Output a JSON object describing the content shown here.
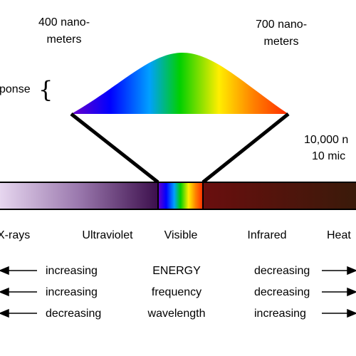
{
  "labels": {
    "nm400_line1": "400 nano-",
    "nm400_line2": "meters",
    "nm700_line1": "700 nano-",
    "nm700_line2": "meters",
    "nm10000_line1": "10,000 n",
    "nm10000_line2": "10 mic",
    "response_partial": "ponse",
    "response_brace": "{"
  },
  "bands": {
    "xrays": "X-rays",
    "ultraviolet": "Ultraviolet",
    "visible": "Visible",
    "infrared": "Infrared",
    "heat": "Heat"
  },
  "trends": {
    "row1": {
      "left": "increasing",
      "center": "ENERGY",
      "right": "decreasing"
    },
    "row2": {
      "left": "increasing",
      "center": "frequency",
      "right": "decreasing"
    },
    "row3": {
      "left": "decreasing",
      "center": "wavelength",
      "right": "increasing"
    }
  },
  "colors": {
    "uv_bar_start": "#e6d6ef",
    "uv_bar_end": "#3c0f4c",
    "ir_bar_start": "#6a0e0e",
    "ir_bar_end": "#3a1a0a",
    "spectrum": [
      "#6a00c8",
      "#0000ff",
      "#00a0ff",
      "#00d000",
      "#ffee00",
      "#ff8000",
      "#ff2a00"
    ]
  }
}
